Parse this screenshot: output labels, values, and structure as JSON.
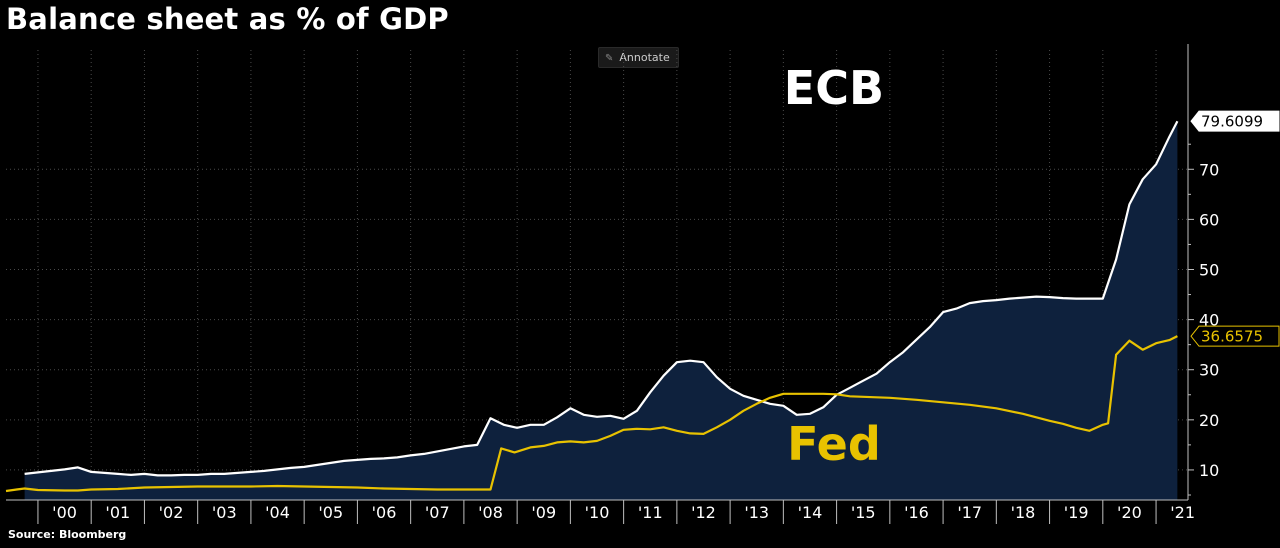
{
  "title": "Balance sheet as % of GDP",
  "annotate_label": "Annotate",
  "annotate_icon": "pencil-icon",
  "source": "Source: Bloomberg",
  "colors": {
    "ecb": "#ffffff",
    "ecb_fill": "#0e213d",
    "fed": "#e8c200",
    "grid": "#4a4a4a",
    "background": "#000000"
  },
  "chart_data": {
    "type": "area",
    "title": "Balance sheet as % of GDP",
    "x_tick_labels": [
      "'00",
      "'01",
      "'02",
      "'03",
      "'04",
      "'05",
      "'06",
      "'07",
      "'08",
      "'09",
      "'10",
      "'11",
      "'12",
      "'13",
      "'14",
      "'15",
      "'16",
      "'17",
      "'18",
      "'19",
      "'20",
      "'21"
    ],
    "xlim": [
      1999.4,
      2021.6
    ],
    "ylim": [
      4,
      95
    ],
    "y_ticks": [
      10,
      20,
      30,
      40,
      50,
      60,
      70
    ],
    "grid": true,
    "series": [
      {
        "name": "ECB",
        "last_value": "79.6099",
        "x": [
          1999.75,
          2000.0,
          2000.25,
          2000.5,
          2000.75,
          2001.0,
          2001.25,
          2001.5,
          2001.75,
          2002.0,
          2002.25,
          2002.5,
          2002.75,
          2003.0,
          2003.25,
          2003.5,
          2003.75,
          2004.0,
          2004.25,
          2004.5,
          2004.75,
          2005.0,
          2005.25,
          2005.5,
          2005.75,
          2006.0,
          2006.25,
          2006.5,
          2006.75,
          2007.0,
          2007.25,
          2007.5,
          2007.75,
          2008.0,
          2008.25,
          2008.5,
          2008.75,
          2009.0,
          2009.25,
          2009.5,
          2009.75,
          2010.0,
          2010.25,
          2010.5,
          2010.75,
          2011.0,
          2011.25,
          2011.5,
          2011.75,
          2012.0,
          2012.25,
          2012.5,
          2012.75,
          2013.0,
          2013.25,
          2013.5,
          2013.75,
          2014.0,
          2014.25,
          2014.5,
          2014.75,
          2015.0,
          2015.25,
          2015.5,
          2015.75,
          2016.0,
          2016.25,
          2016.5,
          2016.75,
          2017.0,
          2017.25,
          2017.5,
          2017.75,
          2018.0,
          2018.25,
          2018.5,
          2018.75,
          2019.0,
          2019.25,
          2019.5,
          2019.75,
          2020.0,
          2020.25,
          2020.5,
          2020.75,
          2021.0,
          2021.25,
          2021.4
        ],
        "values": [
          9.2,
          9.5,
          9.8,
          10.1,
          10.5,
          9.6,
          9.4,
          9.2,
          9.0,
          9.2,
          8.9,
          8.9,
          9.0,
          9.0,
          9.2,
          9.2,
          9.4,
          9.6,
          9.8,
          10.1,
          10.4,
          10.6,
          11.0,
          11.4,
          11.8,
          12.0,
          12.2,
          12.3,
          12.5,
          12.9,
          13.2,
          13.7,
          14.2,
          14.7,
          15.0,
          20.3,
          19.0,
          18.4,
          19.0,
          19.0,
          20.5,
          22.3,
          21.0,
          20.6,
          20.8,
          20.2,
          21.8,
          25.5,
          28.8,
          31.5,
          31.8,
          31.5,
          28.5,
          26.2,
          24.8,
          24.0,
          23.2,
          22.8,
          21.0,
          21.2,
          22.5,
          25.0,
          26.4,
          27.8,
          29.2,
          31.5,
          33.5,
          36.0,
          38.5,
          41.5,
          42.2,
          43.3,
          43.7,
          43.9,
          44.2,
          44.4,
          44.6,
          44.5,
          44.3,
          44.2,
          44.2,
          44.2,
          52.0,
          63.0,
          68.0,
          71.0,
          76.5,
          79.6
        ]
      },
      {
        "name": "Fed",
        "last_value": "36.6575",
        "x": [
          1999.4,
          1999.6,
          1999.75,
          2000.0,
          2000.5,
          2000.75,
          2001.0,
          2001.5,
          2002.0,
          2002.5,
          2003.0,
          2003.5,
          2004.0,
          2004.5,
          2005.0,
          2005.5,
          2006.0,
          2006.5,
          2007.0,
          2007.5,
          2008.0,
          2008.5,
          2008.7,
          2008.95,
          2009.25,
          2009.5,
          2009.75,
          2010.0,
          2010.25,
          2010.5,
          2010.75,
          2011.0,
          2011.25,
          2011.5,
          2011.75,
          2012.0,
          2012.25,
          2012.5,
          2012.75,
          2013.0,
          2013.25,
          2013.5,
          2013.75,
          2014.0,
          2014.25,
          2014.5,
          2014.75,
          2015.0,
          2015.25,
          2015.5,
          2015.75,
          2016.0,
          2016.5,
          2017.0,
          2017.5,
          2018.0,
          2018.5,
          2019.0,
          2019.25,
          2019.5,
          2019.75,
          2020.0,
          2020.1,
          2020.25,
          2020.5,
          2020.75,
          2021.0,
          2021.25,
          2021.4
        ],
        "values": [
          5.8,
          6.1,
          6.3,
          6.0,
          5.9,
          5.9,
          6.1,
          6.2,
          6.5,
          6.6,
          6.7,
          6.7,
          6.7,
          6.8,
          6.7,
          6.6,
          6.5,
          6.3,
          6.2,
          6.1,
          6.1,
          6.1,
          14.3,
          13.5,
          14.5,
          14.8,
          15.5,
          15.7,
          15.5,
          15.8,
          16.8,
          18.0,
          18.2,
          18.1,
          18.5,
          17.8,
          17.3,
          17.2,
          18.5,
          20.0,
          21.8,
          23.2,
          24.4,
          25.2,
          25.2,
          25.2,
          25.2,
          25.1,
          24.7,
          24.6,
          24.5,
          24.4,
          24.0,
          23.5,
          23.0,
          22.3,
          21.2,
          19.8,
          19.2,
          18.4,
          17.8,
          19.0,
          19.3,
          33.0,
          35.8,
          34.0,
          35.3,
          35.9,
          36.7
        ]
      }
    ]
  }
}
